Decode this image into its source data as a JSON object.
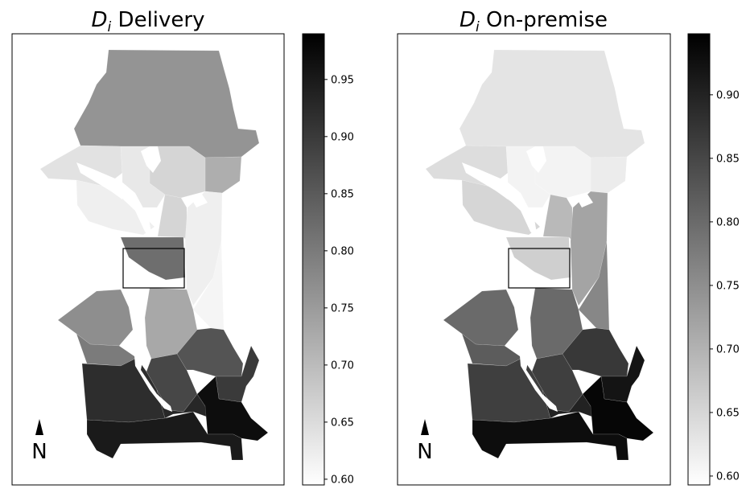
{
  "panels": [
    {
      "id": "delivery",
      "title_var": "D",
      "title_sub": "i",
      "title_rest": " Delivery",
      "north_label": "N",
      "colorbar": {
        "min": 0.595,
        "max": 0.99,
        "ticks": [
          "0.60",
          "0.65",
          "0.70",
          "0.75",
          "0.80",
          "0.85",
          "0.90",
          "0.95"
        ]
      },
      "region_values": {
        "north": 0.76,
        "north_east": 0.72,
        "lake_shore": 0.66,
        "west_point": 0.64,
        "central_north": 0.63,
        "queen_anne": 0.62,
        "downtown_core": 0.82,
        "capitol_hill": 0.66,
        "central_east": 0.62,
        "rainier_north": 0.61,
        "beacon": 0.73,
        "west_seattle_north": 0.77,
        "west_seattle_mid": 0.8,
        "duwamish": 0.88,
        "se_1": 0.86,
        "se_2": 0.9,
        "sw_south": 0.92,
        "south_park": 0.93,
        "rainier_beach": 0.97,
        "far_south": 0.95
      }
    },
    {
      "id": "on-premise",
      "title_var": "D",
      "title_sub": "i",
      "title_rest": " On-premise",
      "north_label": "N",
      "colorbar": {
        "min": 0.593,
        "max": 0.948,
        "ticks": [
          "0.60",
          "0.65",
          "0.70",
          "0.75",
          "0.80",
          "0.85",
          "0.90"
        ]
      },
      "region_values": {
        "north": 0.63,
        "north_east": 0.62,
        "lake_shore": 0.61,
        "west_point": 0.64,
        "central_north": 0.61,
        "queen_anne": 0.65,
        "downtown_core": 0.66,
        "capitol_hill": 0.69,
        "central_east": 0.72,
        "rainier_north": 0.76,
        "beacon": 0.8,
        "west_seattle_north": 0.8,
        "west_seattle_mid": 0.82,
        "duwamish": 0.86,
        "se_1": 0.87,
        "se_2": 0.92,
        "sw_south": 0.86,
        "south_park": 0.9,
        "rainier_beach": 0.94,
        "far_south": 0.93
      }
    }
  ]
}
